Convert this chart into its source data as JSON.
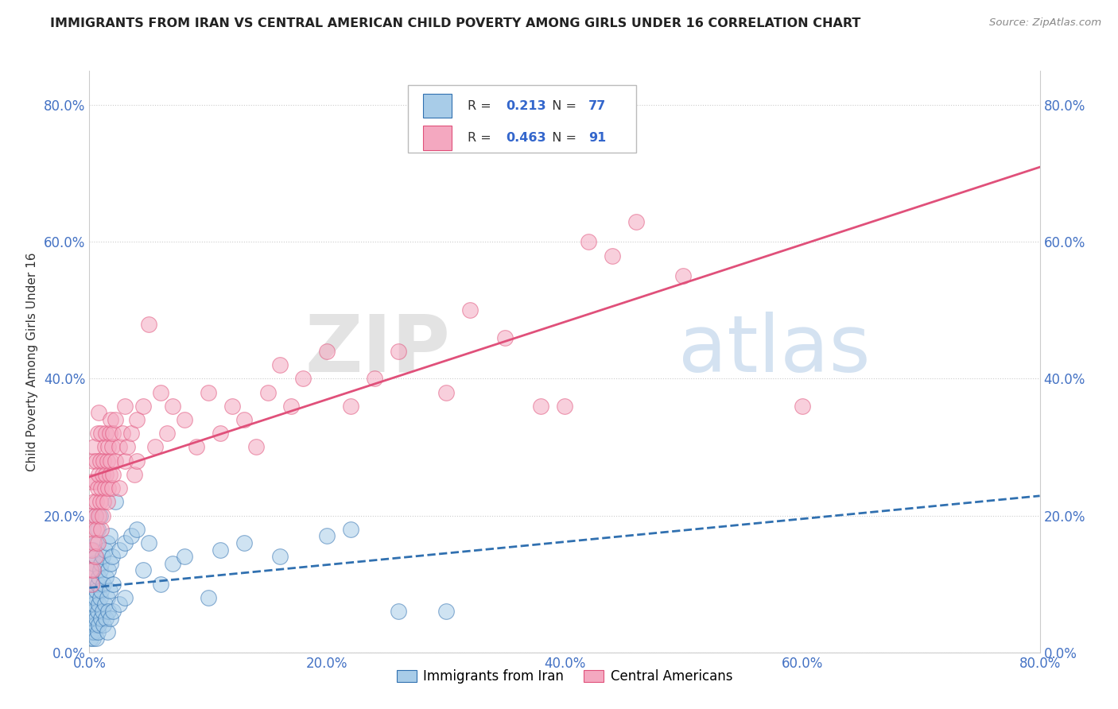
{
  "title": "IMMIGRANTS FROM IRAN VS CENTRAL AMERICAN CHILD POVERTY AMONG GIRLS UNDER 16 CORRELATION CHART",
  "source": "Source: ZipAtlas.com",
  "ylabel": "Child Poverty Among Girls Under 16",
  "xmin": 0.0,
  "xmax": 0.8,
  "ymin": 0.0,
  "ymax": 0.85,
  "ytick_labels": [
    "0.0%",
    "20.0%",
    "40.0%",
    "60.0%",
    "80.0%"
  ],
  "ytick_vals": [
    0.0,
    0.2,
    0.4,
    0.6,
    0.8
  ],
  "xtick_labels": [
    "0.0%",
    "20.0%",
    "40.0%",
    "60.0%",
    "80.0%"
  ],
  "xtick_vals": [
    0.0,
    0.2,
    0.4,
    0.6,
    0.8
  ],
  "blue_color": "#a8cce8",
  "pink_color": "#f4a8c0",
  "blue_line_color": "#3070b0",
  "pink_line_color": "#e0507a",
  "R_blue": 0.213,
  "N_blue": 77,
  "R_pink": 0.463,
  "N_pink": 91,
  "watermark_zip": "ZIP",
  "watermark_atlas": "atlas",
  "legend_label_blue": "Immigrants from Iran",
  "legend_label_pink": "Central Americans",
  "blue_scatter": [
    [
      0.001,
      0.03
    ],
    [
      0.001,
      0.05
    ],
    [
      0.001,
      0.07
    ],
    [
      0.001,
      0.02
    ],
    [
      0.002,
      0.04
    ],
    [
      0.002,
      0.08
    ],
    [
      0.002,
      0.12
    ],
    [
      0.002,
      0.03
    ],
    [
      0.003,
      0.05
    ],
    [
      0.003,
      0.1
    ],
    [
      0.003,
      0.15
    ],
    [
      0.003,
      0.06
    ],
    [
      0.003,
      0.02
    ],
    [
      0.004,
      0.07
    ],
    [
      0.004,
      0.13
    ],
    [
      0.004,
      0.03
    ],
    [
      0.005,
      0.08
    ],
    [
      0.005,
      0.14
    ],
    [
      0.005,
      0.04
    ],
    [
      0.005,
      0.2
    ],
    [
      0.006,
      0.09
    ],
    [
      0.006,
      0.05
    ],
    [
      0.006,
      0.16
    ],
    [
      0.006,
      0.02
    ],
    [
      0.007,
      0.1
    ],
    [
      0.007,
      0.06
    ],
    [
      0.007,
      0.18
    ],
    [
      0.007,
      0.03
    ],
    [
      0.008,
      0.11
    ],
    [
      0.008,
      0.07
    ],
    [
      0.008,
      0.04
    ],
    [
      0.009,
      0.12
    ],
    [
      0.009,
      0.08
    ],
    [
      0.009,
      0.2
    ],
    [
      0.01,
      0.13
    ],
    [
      0.01,
      0.05
    ],
    [
      0.01,
      0.09
    ],
    [
      0.011,
      0.14
    ],
    [
      0.011,
      0.06
    ],
    [
      0.012,
      0.1
    ],
    [
      0.012,
      0.04
    ],
    [
      0.013,
      0.15
    ],
    [
      0.013,
      0.07
    ],
    [
      0.014,
      0.11
    ],
    [
      0.014,
      0.05
    ],
    [
      0.015,
      0.16
    ],
    [
      0.015,
      0.08
    ],
    [
      0.015,
      0.03
    ],
    [
      0.016,
      0.12
    ],
    [
      0.016,
      0.06
    ],
    [
      0.017,
      0.17
    ],
    [
      0.017,
      0.09
    ],
    [
      0.018,
      0.13
    ],
    [
      0.018,
      0.05
    ],
    [
      0.019,
      0.14
    ],
    [
      0.02,
      0.1
    ],
    [
      0.02,
      0.06
    ],
    [
      0.022,
      0.22
    ],
    [
      0.025,
      0.15
    ],
    [
      0.025,
      0.07
    ],
    [
      0.03,
      0.16
    ],
    [
      0.03,
      0.08
    ],
    [
      0.035,
      0.17
    ],
    [
      0.04,
      0.18
    ],
    [
      0.045,
      0.12
    ],
    [
      0.05,
      0.16
    ],
    [
      0.06,
      0.1
    ],
    [
      0.07,
      0.13
    ],
    [
      0.08,
      0.14
    ],
    [
      0.1,
      0.08
    ],
    [
      0.11,
      0.15
    ],
    [
      0.13,
      0.16
    ],
    [
      0.16,
      0.14
    ],
    [
      0.2,
      0.17
    ],
    [
      0.22,
      0.18
    ],
    [
      0.26,
      0.06
    ],
    [
      0.3,
      0.06
    ]
  ],
  "pink_scatter": [
    [
      0.001,
      0.12
    ],
    [
      0.001,
      0.2
    ],
    [
      0.002,
      0.15
    ],
    [
      0.002,
      0.25
    ],
    [
      0.002,
      0.1
    ],
    [
      0.003,
      0.18
    ],
    [
      0.003,
      0.28
    ],
    [
      0.003,
      0.12
    ],
    [
      0.004,
      0.22
    ],
    [
      0.004,
      0.16
    ],
    [
      0.004,
      0.3
    ],
    [
      0.005,
      0.2
    ],
    [
      0.005,
      0.25
    ],
    [
      0.005,
      0.14
    ],
    [
      0.006,
      0.22
    ],
    [
      0.006,
      0.28
    ],
    [
      0.006,
      0.18
    ],
    [
      0.007,
      0.24
    ],
    [
      0.007,
      0.32
    ],
    [
      0.007,
      0.16
    ],
    [
      0.008,
      0.26
    ],
    [
      0.008,
      0.2
    ],
    [
      0.008,
      0.35
    ],
    [
      0.009,
      0.22
    ],
    [
      0.009,
      0.28
    ],
    [
      0.01,
      0.24
    ],
    [
      0.01,
      0.18
    ],
    [
      0.01,
      0.32
    ],
    [
      0.011,
      0.26
    ],
    [
      0.011,
      0.2
    ],
    [
      0.012,
      0.28
    ],
    [
      0.012,
      0.22
    ],
    [
      0.013,
      0.3
    ],
    [
      0.013,
      0.24
    ],
    [
      0.014,
      0.26
    ],
    [
      0.014,
      0.32
    ],
    [
      0.015,
      0.28
    ],
    [
      0.015,
      0.22
    ],
    [
      0.016,
      0.3
    ],
    [
      0.016,
      0.24
    ],
    [
      0.017,
      0.32
    ],
    [
      0.017,
      0.26
    ],
    [
      0.018,
      0.28
    ],
    [
      0.018,
      0.34
    ],
    [
      0.019,
      0.3
    ],
    [
      0.019,
      0.24
    ],
    [
      0.02,
      0.32
    ],
    [
      0.02,
      0.26
    ],
    [
      0.022,
      0.28
    ],
    [
      0.022,
      0.34
    ],
    [
      0.025,
      0.3
    ],
    [
      0.025,
      0.24
    ],
    [
      0.028,
      0.32
    ],
    [
      0.03,
      0.28
    ],
    [
      0.03,
      0.36
    ],
    [
      0.032,
      0.3
    ],
    [
      0.035,
      0.32
    ],
    [
      0.038,
      0.26
    ],
    [
      0.04,
      0.34
    ],
    [
      0.04,
      0.28
    ],
    [
      0.045,
      0.36
    ],
    [
      0.05,
      0.48
    ],
    [
      0.055,
      0.3
    ],
    [
      0.06,
      0.38
    ],
    [
      0.065,
      0.32
    ],
    [
      0.07,
      0.36
    ],
    [
      0.08,
      0.34
    ],
    [
      0.09,
      0.3
    ],
    [
      0.1,
      0.38
    ],
    [
      0.11,
      0.32
    ],
    [
      0.12,
      0.36
    ],
    [
      0.13,
      0.34
    ],
    [
      0.14,
      0.3
    ],
    [
      0.15,
      0.38
    ],
    [
      0.16,
      0.42
    ],
    [
      0.17,
      0.36
    ],
    [
      0.18,
      0.4
    ],
    [
      0.2,
      0.44
    ],
    [
      0.22,
      0.36
    ],
    [
      0.24,
      0.4
    ],
    [
      0.26,
      0.44
    ],
    [
      0.3,
      0.38
    ],
    [
      0.32,
      0.5
    ],
    [
      0.35,
      0.46
    ],
    [
      0.38,
      0.36
    ],
    [
      0.4,
      0.36
    ],
    [
      0.42,
      0.6
    ],
    [
      0.44,
      0.58
    ],
    [
      0.46,
      0.63
    ],
    [
      0.5,
      0.55
    ],
    [
      0.6,
      0.36
    ]
  ]
}
